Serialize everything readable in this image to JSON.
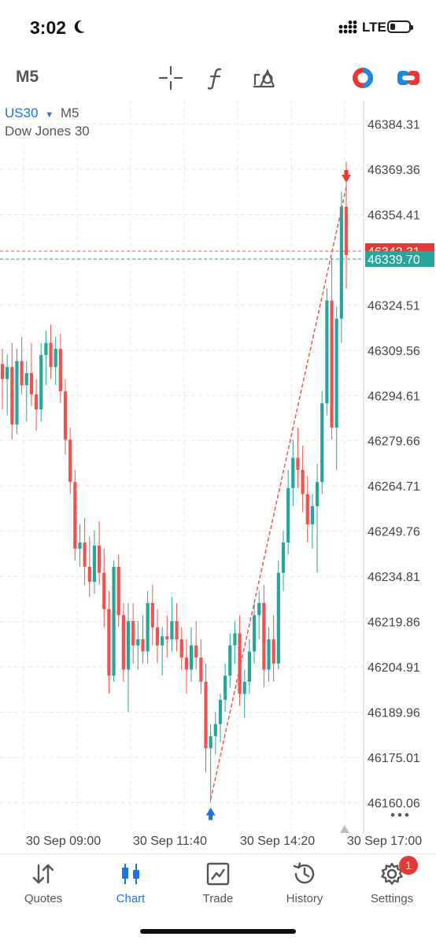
{
  "status_bar": {
    "time": "3:02",
    "network": "LTE"
  },
  "toolbar": {
    "timeframe": "M5",
    "icons": [
      "crosshair-icon",
      "indicator-f-icon",
      "objects-icon",
      "one-click-trading-icon",
      "trade-toggle-icon"
    ]
  },
  "chart": {
    "symbol": "US30",
    "timeframe": "M5",
    "description": "Dow Jones 30",
    "colors": {
      "bull": "#26a69a",
      "bear": "#ef5350",
      "accent": "#1a73e8",
      "grid": "#e9e9e9"
    },
    "price_labels": [
      "46384.31",
      "46369.36",
      "46354.41",
      "46324.51",
      "46309.56",
      "46294.61",
      "46279.66",
      "46264.71",
      "46249.76",
      "46234.81",
      "46219.86",
      "46204.91",
      "46189.96",
      "46175.01",
      "46160.06"
    ],
    "bid_label": "46342.31",
    "ask_label": "46339.70",
    "time_labels": [
      "30 Sep 09:00",
      "30 Sep 11:40",
      "30 Sep 14:20",
      "30 Sep 17:00"
    ]
  },
  "chart_data": {
    "type": "candlestick",
    "symbol": "US30",
    "timeframe": "M5",
    "y_ticks": [
      46384.31,
      46369.36,
      46354.41,
      46339.46,
      46324.51,
      46309.56,
      46294.61,
      46279.66,
      46264.71,
      46249.76,
      46234.81,
      46219.86,
      46204.91,
      46189.96,
      46175.01,
      46160.06
    ],
    "ylim": [
      46150,
      46392
    ],
    "current_bid": 46342.31,
    "current_ask": 46339.7,
    "series": [
      {
        "o": 46305,
        "h": 46310,
        "l": 46290,
        "c": 46300
      },
      {
        "o": 46300,
        "h": 46308,
        "l": 46288,
        "c": 46304
      },
      {
        "o": 46304,
        "h": 46312,
        "l": 46280,
        "c": 46285
      },
      {
        "o": 46285,
        "h": 46310,
        "l": 46282,
        "c": 46306
      },
      {
        "o": 46306,
        "h": 46314,
        "l": 46295,
        "c": 46298
      },
      {
        "o": 46298,
        "h": 46306,
        "l": 46286,
        "c": 46302
      },
      {
        "o": 46302,
        "h": 46312,
        "l": 46291,
        "c": 46295
      },
      {
        "o": 46295,
        "h": 46300,
        "l": 46283,
        "c": 46290
      },
      {
        "o": 46290,
        "h": 46312,
        "l": 46286,
        "c": 46308
      },
      {
        "o": 46308,
        "h": 46316,
        "l": 46298,
        "c": 46312
      },
      {
        "o": 46312,
        "h": 46318,
        "l": 46300,
        "c": 46304
      },
      {
        "o": 46304,
        "h": 46314,
        "l": 46298,
        "c": 46310
      },
      {
        "o": 46310,
        "h": 46315,
        "l": 46292,
        "c": 46296
      },
      {
        "o": 46296,
        "h": 46300,
        "l": 46275,
        "c": 46280
      },
      {
        "o": 46280,
        "h": 46284,
        "l": 46262,
        "c": 46266
      },
      {
        "o": 46266,
        "h": 46270,
        "l": 46240,
        "c": 46244
      },
      {
        "o": 46244,
        "h": 46252,
        "l": 46238,
        "c": 46246
      },
      {
        "o": 46246,
        "h": 46254,
        "l": 46232,
        "c": 46238
      },
      {
        "o": 46238,
        "h": 46248,
        "l": 46228,
        "c": 46233
      },
      {
        "o": 46233,
        "h": 46250,
        "l": 46229,
        "c": 46245
      },
      {
        "o": 46245,
        "h": 46253,
        "l": 46232,
        "c": 46236
      },
      {
        "o": 46236,
        "h": 46244,
        "l": 46218,
        "c": 46224
      },
      {
        "o": 46224,
        "h": 46230,
        "l": 46196,
        "c": 46202
      },
      {
        "o": 46202,
        "h": 46240,
        "l": 46200,
        "c": 46238
      },
      {
        "o": 46238,
        "h": 46242,
        "l": 46218,
        "c": 46222
      },
      {
        "o": 46222,
        "h": 46226,
        "l": 46200,
        "c": 46204
      },
      {
        "o": 46204,
        "h": 46226,
        "l": 46190,
        "c": 46220
      },
      {
        "o": 46220,
        "h": 46226,
        "l": 46206,
        "c": 46212
      },
      {
        "o": 46212,
        "h": 46220,
        "l": 46204,
        "c": 46214
      },
      {
        "o": 46214,
        "h": 46222,
        "l": 46206,
        "c": 46210
      },
      {
        "o": 46210,
        "h": 46230,
        "l": 46206,
        "c": 46226
      },
      {
        "o": 46226,
        "h": 46232,
        "l": 46212,
        "c": 46218
      },
      {
        "o": 46218,
        "h": 46224,
        "l": 46206,
        "c": 46212
      },
      {
        "o": 46212,
        "h": 46218,
        "l": 46202,
        "c": 46215
      },
      {
        "o": 46215,
        "h": 46222,
        "l": 46208,
        "c": 46214
      },
      {
        "o": 46214,
        "h": 46228,
        "l": 46210,
        "c": 46220
      },
      {
        "o": 46220,
        "h": 46226,
        "l": 46210,
        "c": 46214
      },
      {
        "o": 46214,
        "h": 46218,
        "l": 46204,
        "c": 46208
      },
      {
        "o": 46208,
        "h": 46214,
        "l": 46196,
        "c": 46204
      },
      {
        "o": 46204,
        "h": 46218,
        "l": 46200,
        "c": 46212
      },
      {
        "o": 46212,
        "h": 46220,
        "l": 46204,
        "c": 46208
      },
      {
        "o": 46208,
        "h": 46214,
        "l": 46196,
        "c": 46200
      },
      {
        "o": 46200,
        "h": 46206,
        "l": 46170,
        "c": 46178
      },
      {
        "o": 46178,
        "h": 46186,
        "l": 46160,
        "c": 46182
      },
      {
        "o": 46182,
        "h": 46190,
        "l": 46176,
        "c": 46186
      },
      {
        "o": 46186,
        "h": 46196,
        "l": 46180,
        "c": 46194
      },
      {
        "o": 46194,
        "h": 46206,
        "l": 46190,
        "c": 46202
      },
      {
        "o": 46202,
        "h": 46216,
        "l": 46198,
        "c": 46212
      },
      {
        "o": 46212,
        "h": 46220,
        "l": 46206,
        "c": 46216
      },
      {
        "o": 46216,
        "h": 46222,
        "l": 46192,
        "c": 46196
      },
      {
        "o": 46196,
        "h": 46204,
        "l": 46188,
        "c": 46200
      },
      {
        "o": 46200,
        "h": 46214,
        "l": 46196,
        "c": 46210
      },
      {
        "o": 46210,
        "h": 46226,
        "l": 46206,
        "c": 46222
      },
      {
        "o": 46222,
        "h": 46230,
        "l": 46214,
        "c": 46226
      },
      {
        "o": 46226,
        "h": 46232,
        "l": 46198,
        "c": 46204
      },
      {
        "o": 46204,
        "h": 46218,
        "l": 46200,
        "c": 46214
      },
      {
        "o": 46214,
        "h": 46222,
        "l": 46200,
        "c": 46206
      },
      {
        "o": 46206,
        "h": 46240,
        "l": 46204,
        "c": 46236
      },
      {
        "o": 46236,
        "h": 46250,
        "l": 46230,
        "c": 46246
      },
      {
        "o": 46246,
        "h": 46270,
        "l": 46242,
        "c": 46264
      },
      {
        "o": 46264,
        "h": 46280,
        "l": 46258,
        "c": 46274
      },
      {
        "o": 46274,
        "h": 46284,
        "l": 46264,
        "c": 46270
      },
      {
        "o": 46270,
        "h": 46278,
        "l": 46256,
        "c": 46262
      },
      {
        "o": 46262,
        "h": 46268,
        "l": 46246,
        "c": 46252
      },
      {
        "o": 46252,
        "h": 46262,
        "l": 46244,
        "c": 46258
      },
      {
        "o": 46258,
        "h": 46272,
        "l": 46236,
        "c": 46266
      },
      {
        "o": 46266,
        "h": 46296,
        "l": 46262,
        "c": 46292
      },
      {
        "o": 46292,
        "h": 46330,
        "l": 46288,
        "c": 46326
      },
      {
        "o": 46326,
        "h": 46340,
        "l": 46280,
        "c": 46284
      },
      {
        "o": 46284,
        "h": 46324,
        "l": 46270,
        "c": 46320
      },
      {
        "o": 46320,
        "h": 46362,
        "l": 46312,
        "c": 46357
      },
      {
        "o": 46357,
        "h": 46372,
        "l": 46330,
        "c": 46341
      }
    ]
  },
  "nav": {
    "items": [
      {
        "label": "Quotes",
        "icon": "quotes-icon"
      },
      {
        "label": "Chart",
        "icon": "chart-icon"
      },
      {
        "label": "Trade",
        "icon": "trade-icon"
      },
      {
        "label": "History",
        "icon": "history-icon"
      },
      {
        "label": "Settings",
        "icon": "settings-icon"
      }
    ],
    "settings_badge": "1"
  }
}
